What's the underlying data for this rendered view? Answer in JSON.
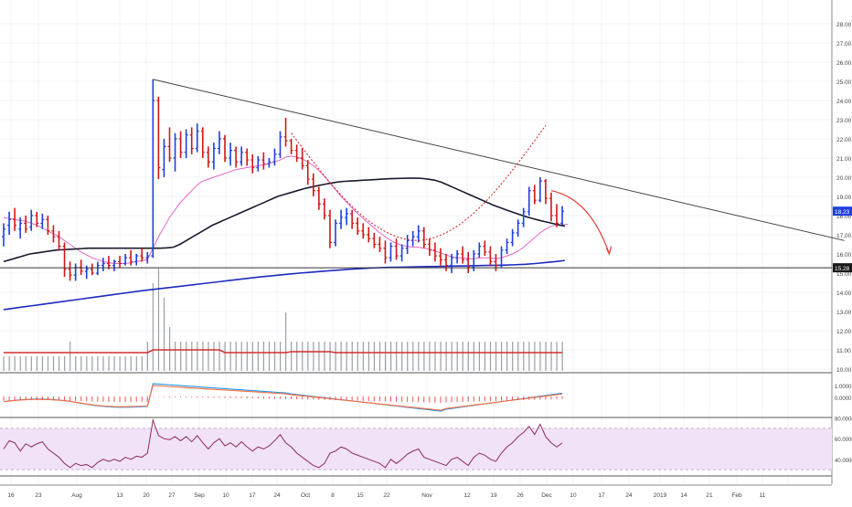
{
  "chart_data": {
    "type": "ohlc-bar",
    "instrument_price_labels": {
      "last": "18.23",
      "support": "15.28"
    },
    "price_axis": {
      "ticks": [
        "10.00",
        "11.00",
        "12.00",
        "13.00",
        "14.00",
        "15.00",
        "16.00",
        "17.00",
        "18.00",
        "19.00",
        "20.00",
        "21.00",
        "22.00",
        "23.00",
        "24.00",
        "25.00",
        "26.00",
        "27.00",
        "28.00"
      ]
    },
    "time_axis": {
      "labels": [
        "16",
        "23",
        "Aug",
        "13",
        "20",
        "27",
        "Sep",
        "10",
        "17",
        "24",
        "Oct",
        "8",
        "15",
        "22",
        "Nov",
        "12",
        "19",
        "26",
        "Dec",
        "10",
        "17",
        "24",
        "2019",
        "14",
        "21",
        "Feb",
        "11"
      ]
    },
    "price_bars": [
      {
        "o": 16.9,
        "h": 17.6,
        "l": 16.4,
        "c": 17.3,
        "dir": "up"
      },
      {
        "o": 17.5,
        "h": 18.2,
        "l": 17.0,
        "c": 17.8,
        "dir": "up"
      },
      {
        "o": 17.8,
        "h": 18.4,
        "l": 17.2,
        "c": 17.5,
        "dir": "down"
      },
      {
        "o": 17.3,
        "h": 17.9,
        "l": 16.8,
        "c": 17.6,
        "dir": "up"
      },
      {
        "o": 17.6,
        "h": 18.0,
        "l": 17.1,
        "c": 17.3,
        "dir": "down"
      },
      {
        "o": 17.4,
        "h": 18.3,
        "l": 17.2,
        "c": 18.0,
        "dir": "up"
      },
      {
        "o": 18.0,
        "h": 18.2,
        "l": 17.4,
        "c": 17.6,
        "dir": "down"
      },
      {
        "o": 17.6,
        "h": 18.1,
        "l": 17.3,
        "c": 17.8,
        "dir": "up"
      },
      {
        "o": 17.8,
        "h": 18.0,
        "l": 17.0,
        "c": 17.2,
        "dir": "down"
      },
      {
        "o": 17.2,
        "h": 17.5,
        "l": 16.6,
        "c": 16.9,
        "dir": "down"
      },
      {
        "o": 16.9,
        "h": 17.2,
        "l": 16.2,
        "c": 16.4,
        "dir": "down"
      },
      {
        "o": 16.4,
        "h": 16.6,
        "l": 14.8,
        "c": 15.2,
        "dir": "down"
      },
      {
        "o": 15.2,
        "h": 15.6,
        "l": 14.6,
        "c": 14.9,
        "dir": "down"
      },
      {
        "o": 14.9,
        "h": 15.5,
        "l": 14.6,
        "c": 15.3,
        "dir": "up"
      },
      {
        "o": 15.3,
        "h": 15.7,
        "l": 14.9,
        "c": 15.1,
        "dir": "down"
      },
      {
        "o": 15.1,
        "h": 15.4,
        "l": 14.7,
        "c": 15.2,
        "dir": "up"
      },
      {
        "o": 15.2,
        "h": 15.5,
        "l": 14.9,
        "c": 15.0,
        "dir": "down"
      },
      {
        "o": 15.0,
        "h": 15.6,
        "l": 14.9,
        "c": 15.4,
        "dir": "up"
      },
      {
        "o": 15.4,
        "h": 15.8,
        "l": 15.1,
        "c": 15.5,
        "dir": "up"
      },
      {
        "o": 15.5,
        "h": 15.9,
        "l": 15.2,
        "c": 15.4,
        "dir": "down"
      },
      {
        "o": 15.4,
        "h": 15.7,
        "l": 15.1,
        "c": 15.6,
        "dir": "up"
      },
      {
        "o": 15.6,
        "h": 15.9,
        "l": 15.3,
        "c": 15.5,
        "dir": "down"
      },
      {
        "o": 15.5,
        "h": 16.0,
        "l": 15.4,
        "c": 15.8,
        "dir": "up"
      },
      {
        "o": 15.8,
        "h": 16.2,
        "l": 15.4,
        "c": 15.6,
        "dir": "down"
      },
      {
        "o": 15.6,
        "h": 16.0,
        "l": 15.4,
        "c": 15.9,
        "dir": "up"
      },
      {
        "o": 15.9,
        "h": 16.3,
        "l": 15.6,
        "c": 15.8,
        "dir": "down"
      },
      {
        "o": 15.8,
        "h": 16.1,
        "l": 15.5,
        "c": 15.9,
        "dir": "up"
      },
      {
        "o": 15.9,
        "h": 25.1,
        "l": 15.8,
        "c": 24.0,
        "dir": "up"
      },
      {
        "o": 24.0,
        "h": 24.2,
        "l": 19.9,
        "c": 20.5,
        "dir": "down"
      },
      {
        "o": 20.4,
        "h": 22.0,
        "l": 20.0,
        "c": 21.6,
        "dir": "up"
      },
      {
        "o": 21.6,
        "h": 22.6,
        "l": 20.8,
        "c": 21.0,
        "dir": "down"
      },
      {
        "o": 21.0,
        "h": 22.3,
        "l": 20.3,
        "c": 22.0,
        "dir": "up"
      },
      {
        "o": 22.0,
        "h": 22.4,
        "l": 21.0,
        "c": 21.3,
        "dir": "down"
      },
      {
        "o": 21.3,
        "h": 22.5,
        "l": 21.0,
        "c": 22.2,
        "dir": "up"
      },
      {
        "o": 22.2,
        "h": 22.6,
        "l": 21.2,
        "c": 21.5,
        "dir": "down"
      },
      {
        "o": 21.5,
        "h": 22.8,
        "l": 21.3,
        "c": 22.4,
        "dir": "up"
      },
      {
        "o": 22.4,
        "h": 22.6,
        "l": 21.0,
        "c": 21.3,
        "dir": "down"
      },
      {
        "o": 21.3,
        "h": 21.6,
        "l": 20.5,
        "c": 20.8,
        "dir": "down"
      },
      {
        "o": 20.8,
        "h": 21.8,
        "l": 20.4,
        "c": 21.5,
        "dir": "up"
      },
      {
        "o": 21.5,
        "h": 22.4,
        "l": 21.2,
        "c": 22.0,
        "dir": "up"
      },
      {
        "o": 22.0,
        "h": 22.2,
        "l": 20.8,
        "c": 21.0,
        "dir": "down"
      },
      {
        "o": 21.0,
        "h": 21.8,
        "l": 20.6,
        "c": 21.4,
        "dir": "up"
      },
      {
        "o": 21.4,
        "h": 21.6,
        "l": 20.5,
        "c": 20.8,
        "dir": "down"
      },
      {
        "o": 20.8,
        "h": 21.6,
        "l": 20.6,
        "c": 21.3,
        "dir": "up"
      },
      {
        "o": 21.3,
        "h": 21.5,
        "l": 20.6,
        "c": 20.9,
        "dir": "down"
      },
      {
        "o": 20.9,
        "h": 21.2,
        "l": 20.2,
        "c": 20.5,
        "dir": "down"
      },
      {
        "o": 20.5,
        "h": 21.1,
        "l": 20.3,
        "c": 20.9,
        "dir": "up"
      },
      {
        "o": 20.9,
        "h": 21.3,
        "l": 20.4,
        "c": 20.7,
        "dir": "down"
      },
      {
        "o": 20.7,
        "h": 21.0,
        "l": 20.5,
        "c": 20.8,
        "dir": "up"
      },
      {
        "o": 20.8,
        "h": 21.5,
        "l": 20.6,
        "c": 21.2,
        "dir": "up"
      },
      {
        "o": 21.2,
        "h": 22.4,
        "l": 21.0,
        "c": 22.1,
        "dir": "up"
      },
      {
        "o": 22.1,
        "h": 23.1,
        "l": 21.6,
        "c": 21.9,
        "dir": "down"
      },
      {
        "o": 21.9,
        "h": 22.0,
        "l": 21.2,
        "c": 21.4,
        "dir": "down"
      },
      {
        "o": 21.4,
        "h": 21.7,
        "l": 20.8,
        "c": 21.0,
        "dir": "down"
      },
      {
        "o": 21.0,
        "h": 21.5,
        "l": 20.4,
        "c": 20.6,
        "dir": "down"
      },
      {
        "o": 20.6,
        "h": 20.9,
        "l": 19.6,
        "c": 19.9,
        "dir": "down"
      },
      {
        "o": 19.9,
        "h": 20.2,
        "l": 19.0,
        "c": 19.3,
        "dir": "down"
      },
      {
        "o": 19.3,
        "h": 19.5,
        "l": 18.3,
        "c": 18.6,
        "dir": "down"
      },
      {
        "o": 18.6,
        "h": 18.9,
        "l": 17.8,
        "c": 18.0,
        "dir": "down"
      },
      {
        "o": 18.0,
        "h": 18.3,
        "l": 16.3,
        "c": 16.6,
        "dir": "down"
      },
      {
        "o": 16.6,
        "h": 17.8,
        "l": 16.4,
        "c": 17.6,
        "dir": "up"
      },
      {
        "o": 17.6,
        "h": 18.3,
        "l": 17.3,
        "c": 17.9,
        "dir": "up"
      },
      {
        "o": 17.9,
        "h": 18.4,
        "l": 17.5,
        "c": 18.1,
        "dir": "up"
      },
      {
        "o": 18.1,
        "h": 18.3,
        "l": 17.3,
        "c": 17.6,
        "dir": "down"
      },
      {
        "o": 17.6,
        "h": 17.9,
        "l": 17.0,
        "c": 17.2,
        "dir": "down"
      },
      {
        "o": 17.2,
        "h": 17.6,
        "l": 16.8,
        "c": 17.0,
        "dir": "down"
      },
      {
        "o": 17.0,
        "h": 17.4,
        "l": 16.6,
        "c": 16.8,
        "dir": "down"
      },
      {
        "o": 16.8,
        "h": 17.1,
        "l": 16.3,
        "c": 16.5,
        "dir": "down"
      },
      {
        "o": 16.5,
        "h": 16.9,
        "l": 16.1,
        "c": 16.3,
        "dir": "down"
      },
      {
        "o": 16.3,
        "h": 16.7,
        "l": 15.5,
        "c": 15.8,
        "dir": "down"
      },
      {
        "o": 15.8,
        "h": 16.6,
        "l": 15.6,
        "c": 16.4,
        "dir": "up"
      },
      {
        "o": 16.4,
        "h": 16.8,
        "l": 15.7,
        "c": 15.9,
        "dir": "down"
      },
      {
        "o": 15.9,
        "h": 16.5,
        "l": 15.6,
        "c": 16.3,
        "dir": "up"
      },
      {
        "o": 16.3,
        "h": 17.0,
        "l": 16.0,
        "c": 16.7,
        "dir": "up"
      },
      {
        "o": 16.7,
        "h": 17.2,
        "l": 16.4,
        "c": 16.9,
        "dir": "up"
      },
      {
        "o": 16.9,
        "h": 17.5,
        "l": 16.6,
        "c": 17.2,
        "dir": "up"
      },
      {
        "o": 17.2,
        "h": 17.4,
        "l": 16.3,
        "c": 16.5,
        "dir": "down"
      },
      {
        "o": 16.5,
        "h": 16.8,
        "l": 15.9,
        "c": 16.2,
        "dir": "down"
      },
      {
        "o": 16.2,
        "h": 16.6,
        "l": 15.6,
        "c": 15.9,
        "dir": "down"
      },
      {
        "o": 15.9,
        "h": 16.3,
        "l": 15.4,
        "c": 15.7,
        "dir": "down"
      },
      {
        "o": 15.7,
        "h": 16.0,
        "l": 15.1,
        "c": 15.4,
        "dir": "down"
      },
      {
        "o": 15.4,
        "h": 16.0,
        "l": 15.0,
        "c": 15.8,
        "dir": "up"
      },
      {
        "o": 15.8,
        "h": 16.2,
        "l": 15.5,
        "c": 16.0,
        "dir": "up"
      },
      {
        "o": 16.0,
        "h": 16.4,
        "l": 15.5,
        "c": 15.7,
        "dir": "down"
      },
      {
        "o": 15.7,
        "h": 16.1,
        "l": 15.0,
        "c": 15.3,
        "dir": "down"
      },
      {
        "o": 15.3,
        "h": 16.2,
        "l": 15.1,
        "c": 16.0,
        "dir": "up"
      },
      {
        "o": 16.0,
        "h": 16.6,
        "l": 15.8,
        "c": 16.4,
        "dir": "up"
      },
      {
        "o": 16.4,
        "h": 16.7,
        "l": 15.9,
        "c": 16.1,
        "dir": "down"
      },
      {
        "o": 16.1,
        "h": 16.4,
        "l": 15.4,
        "c": 15.6,
        "dir": "down"
      },
      {
        "o": 15.6,
        "h": 16.0,
        "l": 15.1,
        "c": 15.4,
        "dir": "down"
      },
      {
        "o": 15.4,
        "h": 16.4,
        "l": 15.3,
        "c": 16.2,
        "dir": "up"
      },
      {
        "o": 16.2,
        "h": 16.8,
        "l": 16.0,
        "c": 16.6,
        "dir": "up"
      },
      {
        "o": 16.6,
        "h": 17.3,
        "l": 16.4,
        "c": 17.1,
        "dir": "up"
      },
      {
        "o": 17.1,
        "h": 17.8,
        "l": 16.9,
        "c": 17.6,
        "dir": "up"
      },
      {
        "o": 17.6,
        "h": 18.4,
        "l": 17.4,
        "c": 18.2,
        "dir": "up"
      },
      {
        "o": 18.2,
        "h": 19.5,
        "l": 18.0,
        "c": 19.3,
        "dir": "up"
      },
      {
        "o": 19.3,
        "h": 19.6,
        "l": 18.6,
        "c": 18.8,
        "dir": "down"
      },
      {
        "o": 18.8,
        "h": 20.0,
        "l": 18.7,
        "c": 19.8,
        "dir": "up"
      },
      {
        "o": 19.8,
        "h": 19.9,
        "l": 18.6,
        "c": 18.9,
        "dir": "down"
      },
      {
        "o": 18.9,
        "h": 19.2,
        "l": 17.7,
        "c": 18.0,
        "dir": "down"
      },
      {
        "o": 18.0,
        "h": 18.6,
        "l": 17.4,
        "c": 17.6,
        "dir": "down"
      },
      {
        "o": 17.6,
        "h": 18.5,
        "l": 17.5,
        "c": 18.23,
        "dir": "up"
      }
    ],
    "moving_averages": [
      {
        "period": "short",
        "color": "#e565c8",
        "values": [
          17.9,
          17.85,
          17.8,
          17.75,
          17.7,
          17.6,
          17.5,
          17.35,
          17.2,
          17.05,
          16.9,
          16.7,
          16.5,
          16.3,
          16.1,
          15.95,
          15.8,
          15.7,
          15.6,
          15.55,
          15.5,
          15.5,
          15.5,
          15.55,
          15.6,
          15.65,
          15.7,
          16.3,
          16.9,
          17.4,
          17.9,
          18.3,
          18.7,
          19.0,
          19.3,
          19.6,
          19.8,
          19.9,
          20.0,
          20.1,
          20.2,
          20.3,
          20.4,
          20.45,
          20.5,
          20.55,
          20.6,
          20.65,
          20.7,
          20.8,
          20.9,
          21.05,
          21.1,
          21.05,
          20.95,
          20.8,
          20.6,
          20.35,
          20.05,
          19.7,
          19.35,
          19.0,
          18.7,
          18.4,
          18.1,
          17.85,
          17.6,
          17.35,
          17.1,
          16.9,
          16.7,
          16.55,
          16.45,
          16.4,
          16.35,
          16.35,
          16.3,
          16.25,
          16.15,
          16.05,
          15.95,
          15.85,
          15.8,
          15.8,
          15.75,
          15.75,
          15.8,
          15.8,
          15.8,
          15.75,
          15.8,
          15.9,
          16.0,
          16.15,
          16.35,
          16.6,
          16.85,
          17.1,
          17.3,
          17.45,
          17.5,
          17.52,
          17.55
        ]
      },
      {
        "period": "mid",
        "color": "#1a1a2e",
        "values": [
          15.6,
          15.7,
          15.8,
          15.9,
          16.0,
          16.05,
          16.1,
          16.15,
          16.2,
          16.22,
          16.24,
          16.26,
          16.28,
          16.3,
          16.3,
          16.3,
          16.3,
          16.3,
          16.3,
          16.3,
          16.3,
          16.3,
          16.3,
          16.3,
          16.3,
          16.32,
          16.35,
          16.5,
          16.7,
          16.9,
          17.1,
          17.3,
          17.5,
          17.65,
          17.8,
          17.95,
          18.1,
          18.25,
          18.4,
          18.55,
          18.7,
          18.85,
          19.0,
          19.1,
          19.2,
          19.3,
          19.4,
          19.48,
          19.55,
          19.62,
          19.68,
          19.74,
          19.78,
          19.8,
          19.82,
          19.84,
          19.86,
          19.88,
          19.9,
          19.92,
          19.93,
          19.94,
          19.95,
          19.95,
          19.94,
          19.9,
          19.85,
          19.75,
          19.6,
          19.45,
          19.3,
          19.15,
          19.0,
          18.85,
          18.7,
          18.55,
          18.42,
          18.3,
          18.18,
          18.06,
          17.95,
          17.85,
          17.76,
          17.68,
          17.6,
          17.52,
          17.45
        ]
      },
      {
        "period": "long",
        "color": "#1c2bbd",
        "values": [
          13.1,
          13.17,
          13.24,
          13.31,
          13.38,
          13.45,
          13.52,
          13.59,
          13.66,
          13.73,
          13.8,
          13.87,
          13.94,
          14.01,
          14.08,
          14.14,
          14.2,
          14.26,
          14.32,
          14.38,
          14.44,
          14.5,
          14.56,
          14.62,
          14.68,
          14.74,
          14.8,
          14.85,
          14.9,
          14.95,
          15.0,
          15.04,
          15.08,
          15.12,
          15.16,
          15.2,
          15.23,
          15.26,
          15.28,
          15.3,
          15.31,
          15.32,
          15.33,
          15.34,
          15.35,
          15.36,
          15.37,
          15.38,
          15.39,
          15.4,
          15.41,
          15.42,
          15.44,
          15.46,
          15.5,
          15.55,
          15.6,
          15.66
        ]
      }
    ],
    "trendline": {
      "from": {
        "bar": 27,
        "price": 25.1
      },
      "to": {
        "bar": 152,
        "price": 16.7
      }
    },
    "support_level": 15.28,
    "volume_values": [
      1,
      1,
      1,
      1,
      1,
      1,
      1,
      1,
      1,
      1,
      1,
      1,
      2,
      1,
      1,
      1,
      1,
      1,
      1,
      1,
      1,
      1,
      1,
      1,
      1,
      1,
      2,
      6,
      7,
      5,
      3,
      2,
      2,
      2,
      2,
      2,
      2,
      2,
      2,
      2,
      2,
      2,
      2,
      2,
      2,
      2,
      2,
      2,
      2,
      2,
      2,
      4,
      2,
      2,
      2,
      2,
      2,
      2,
      2,
      2,
      2,
      2,
      2,
      2,
      2,
      2,
      2,
      2,
      2,
      2,
      2,
      2,
      2,
      2,
      2,
      2,
      2,
      2,
      2,
      2,
      2,
      2,
      2,
      2,
      2,
      2,
      2,
      2,
      2,
      2,
      2,
      2,
      2,
      2,
      2,
      2,
      2,
      2,
      2,
      2,
      2,
      2
    ],
    "volume_ma_level": 0.3,
    "oscillator_macd": {
      "ticks": [
        "1.0000",
        "0.0000"
      ]
    },
    "oscillator_rsi": {
      "ticks": [
        "80.0000",
        "60.0000",
        "40.0000"
      ],
      "band_upper": 70,
      "band_lower": 30,
      "values": [
        50,
        58,
        56,
        48,
        55,
        52,
        55,
        57,
        50,
        46,
        42,
        36,
        32,
        36,
        34,
        35,
        32,
        37,
        40,
        38,
        40,
        38,
        42,
        40,
        43,
        42,
        46,
        78,
        63,
        60,
        59,
        62,
        58,
        62,
        57,
        63,
        56,
        50,
        56,
        60,
        53,
        56,
        52,
        57,
        52,
        48,
        52,
        50,
        53,
        58,
        64,
        56,
        52,
        46,
        42,
        38,
        34,
        32,
        36,
        46,
        48,
        52,
        50,
        46,
        44,
        42,
        40,
        38,
        36,
        32,
        40,
        36,
        40,
        45,
        48,
        50,
        42,
        40,
        38,
        36,
        34,
        40,
        42,
        38,
        34,
        42,
        46,
        44,
        40,
        38,
        46,
        52,
        56,
        62,
        66,
        72,
        64,
        74,
        62,
        56,
        52,
        56
      ]
    }
  }
}
